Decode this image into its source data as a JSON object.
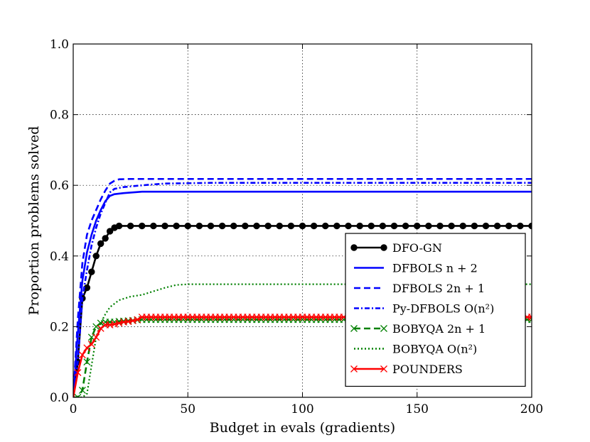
{
  "chart_data": {
    "type": "line",
    "title": "",
    "xlabel": "Budget in evals (gradients)",
    "ylabel": "Proportion problems solved",
    "xlim": [
      0,
      200
    ],
    "ylim": [
      0.0,
      1.0
    ],
    "xticks": [
      "0",
      "50",
      "100",
      "150",
      "200"
    ],
    "yticks": [
      "0.0",
      "0.2",
      "0.4",
      "0.6",
      "0.8",
      "1.0"
    ],
    "grid": true,
    "legend_position": "lower-right",
    "series": [
      {
        "name": "DFO-GN",
        "legend": "DFO-GN",
        "color": "#000000",
        "dash": "solid",
        "marker": "circle",
        "x": [
          0,
          2,
          4,
          6,
          8,
          10,
          12,
          14,
          16,
          18,
          20,
          25,
          30,
          40,
          60,
          100,
          150,
          200
        ],
        "y": [
          0.0,
          0.1,
          0.28,
          0.31,
          0.355,
          0.4,
          0.435,
          0.45,
          0.47,
          0.48,
          0.485,
          0.485,
          0.485,
          0.485,
          0.485,
          0.485,
          0.485,
          0.485
        ]
      },
      {
        "name": "DFBOLS n+2",
        "legend": "DFBOLS n + 2",
        "color": "#0000ff",
        "dash": "solid",
        "marker": "none",
        "x": [
          0,
          2,
          4,
          6,
          8,
          10,
          12,
          14,
          16,
          18,
          22,
          30,
          40,
          60,
          100,
          150,
          200
        ],
        "y": [
          0.0,
          0.18,
          0.33,
          0.41,
          0.46,
          0.5,
          0.53,
          0.555,
          0.57,
          0.575,
          0.578,
          0.582,
          0.582,
          0.582,
          0.582,
          0.582,
          0.582
        ]
      },
      {
        "name": "DFBOLS 2n+1",
        "legend": "DFBOLS 2n + 1",
        "color": "#0000ff",
        "dash": "dashed",
        "marker": "none",
        "x": [
          0,
          2,
          4,
          6,
          8,
          10,
          12,
          14,
          16,
          18,
          20,
          25,
          30,
          40,
          60,
          100,
          150,
          200
        ],
        "y": [
          0.0,
          0.22,
          0.38,
          0.46,
          0.5,
          0.53,
          0.56,
          0.585,
          0.605,
          0.613,
          0.617,
          0.618,
          0.618,
          0.618,
          0.618,
          0.618,
          0.618,
          0.618
        ]
      },
      {
        "name": "Py-DFBOLS O(n^2)",
        "legend": "Py-DFBOLS O(n²)",
        "color": "#0000ff",
        "dash": "dashdot",
        "marker": "none",
        "x": [
          0,
          2,
          4,
          6,
          8,
          10,
          12,
          14,
          16,
          18,
          22,
          30,
          40,
          60,
          100,
          150,
          200
        ],
        "y": [
          0.0,
          0.1,
          0.28,
          0.36,
          0.43,
          0.48,
          0.52,
          0.55,
          0.58,
          0.59,
          0.595,
          0.6,
          0.605,
          0.607,
          0.607,
          0.607,
          0.607
        ]
      },
      {
        "name": "BOBYQA 2n+1",
        "legend": "BOBYQA 2n + 1",
        "color": "#008000",
        "dash": "dashed",
        "marker": "x",
        "x": [
          0,
          2,
          4,
          6,
          8,
          10,
          12,
          14,
          16,
          18,
          20,
          25,
          30,
          40,
          60,
          100,
          150,
          200
        ],
        "y": [
          0.0,
          0.0,
          0.02,
          0.1,
          0.17,
          0.2,
          0.21,
          0.213,
          0.213,
          0.213,
          0.215,
          0.217,
          0.22,
          0.22,
          0.22,
          0.22,
          0.22,
          0.22
        ]
      },
      {
        "name": "BOBYQA O(n^2)",
        "legend": "BOBYQA O(n²)",
        "color": "#008000",
        "dash": "dotted",
        "marker": "none",
        "x": [
          0,
          2,
          4,
          6,
          8,
          10,
          12,
          14,
          16,
          18,
          20,
          25,
          30,
          35,
          40,
          45,
          50,
          60,
          100,
          150,
          200
        ],
        "y": [
          0.0,
          0.0,
          0.0,
          0.01,
          0.09,
          0.17,
          0.21,
          0.235,
          0.255,
          0.265,
          0.275,
          0.285,
          0.29,
          0.3,
          0.31,
          0.318,
          0.32,
          0.32,
          0.32,
          0.32,
          0.32
        ]
      },
      {
        "name": "POUNDERS",
        "legend": "POUNDERS",
        "color": "#ff0000",
        "dash": "solid",
        "marker": "x",
        "x": [
          0,
          2,
          4,
          6,
          8,
          10,
          12,
          14,
          16,
          18,
          20,
          22,
          25,
          28,
          30,
          40,
          60,
          100,
          150,
          200
        ],
        "y": [
          0.0,
          0.07,
          0.12,
          0.14,
          0.15,
          0.17,
          0.195,
          0.205,
          0.205,
          0.207,
          0.21,
          0.213,
          0.215,
          0.22,
          0.227,
          0.227,
          0.227,
          0.227,
          0.227,
          0.227
        ]
      }
    ]
  }
}
